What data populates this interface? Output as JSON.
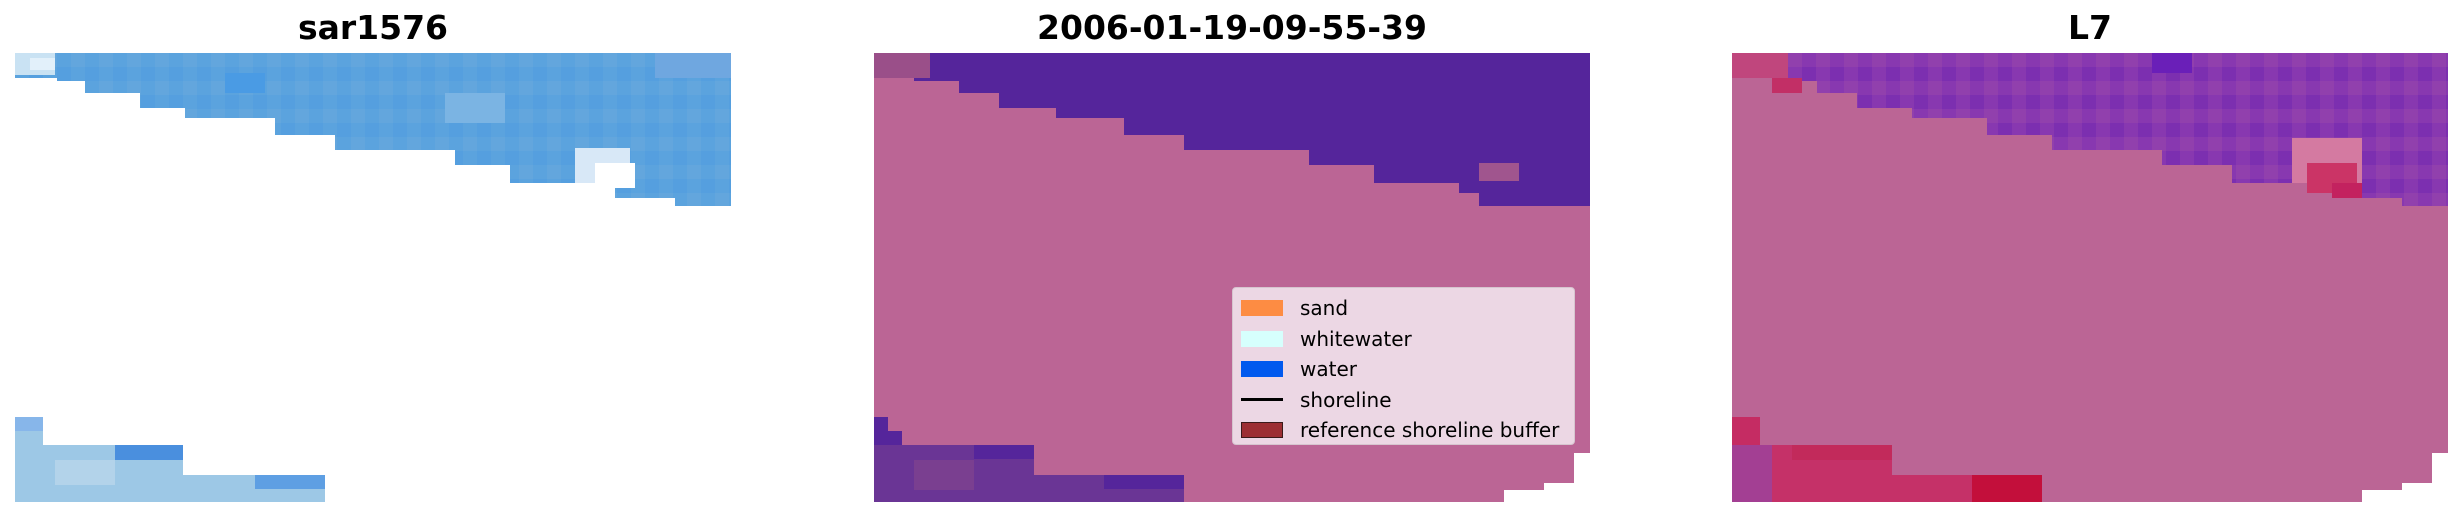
{
  "panels": [
    {
      "title": "sar1576"
    },
    {
      "title": "2006-01-19-09-55-39"
    },
    {
      "title": "L7"
    }
  ],
  "legend": {
    "items": [
      {
        "label": "sand",
        "color": "#fd8c43"
      },
      {
        "label": "whitewater",
        "color": "#d6fffd"
      },
      {
        "label": "water",
        "color": "#0159ee"
      },
      {
        "label": "shoreline",
        "color": "#000000"
      },
      {
        "label": "reference shoreline buffer",
        "color": "#9c2e33"
      }
    ]
  },
  "colors": {
    "sand_overlay": "#bb6595",
    "water_class": "#55259b",
    "rgb_water": "#5aa0de",
    "false_color_water": "#8838b0"
  }
}
